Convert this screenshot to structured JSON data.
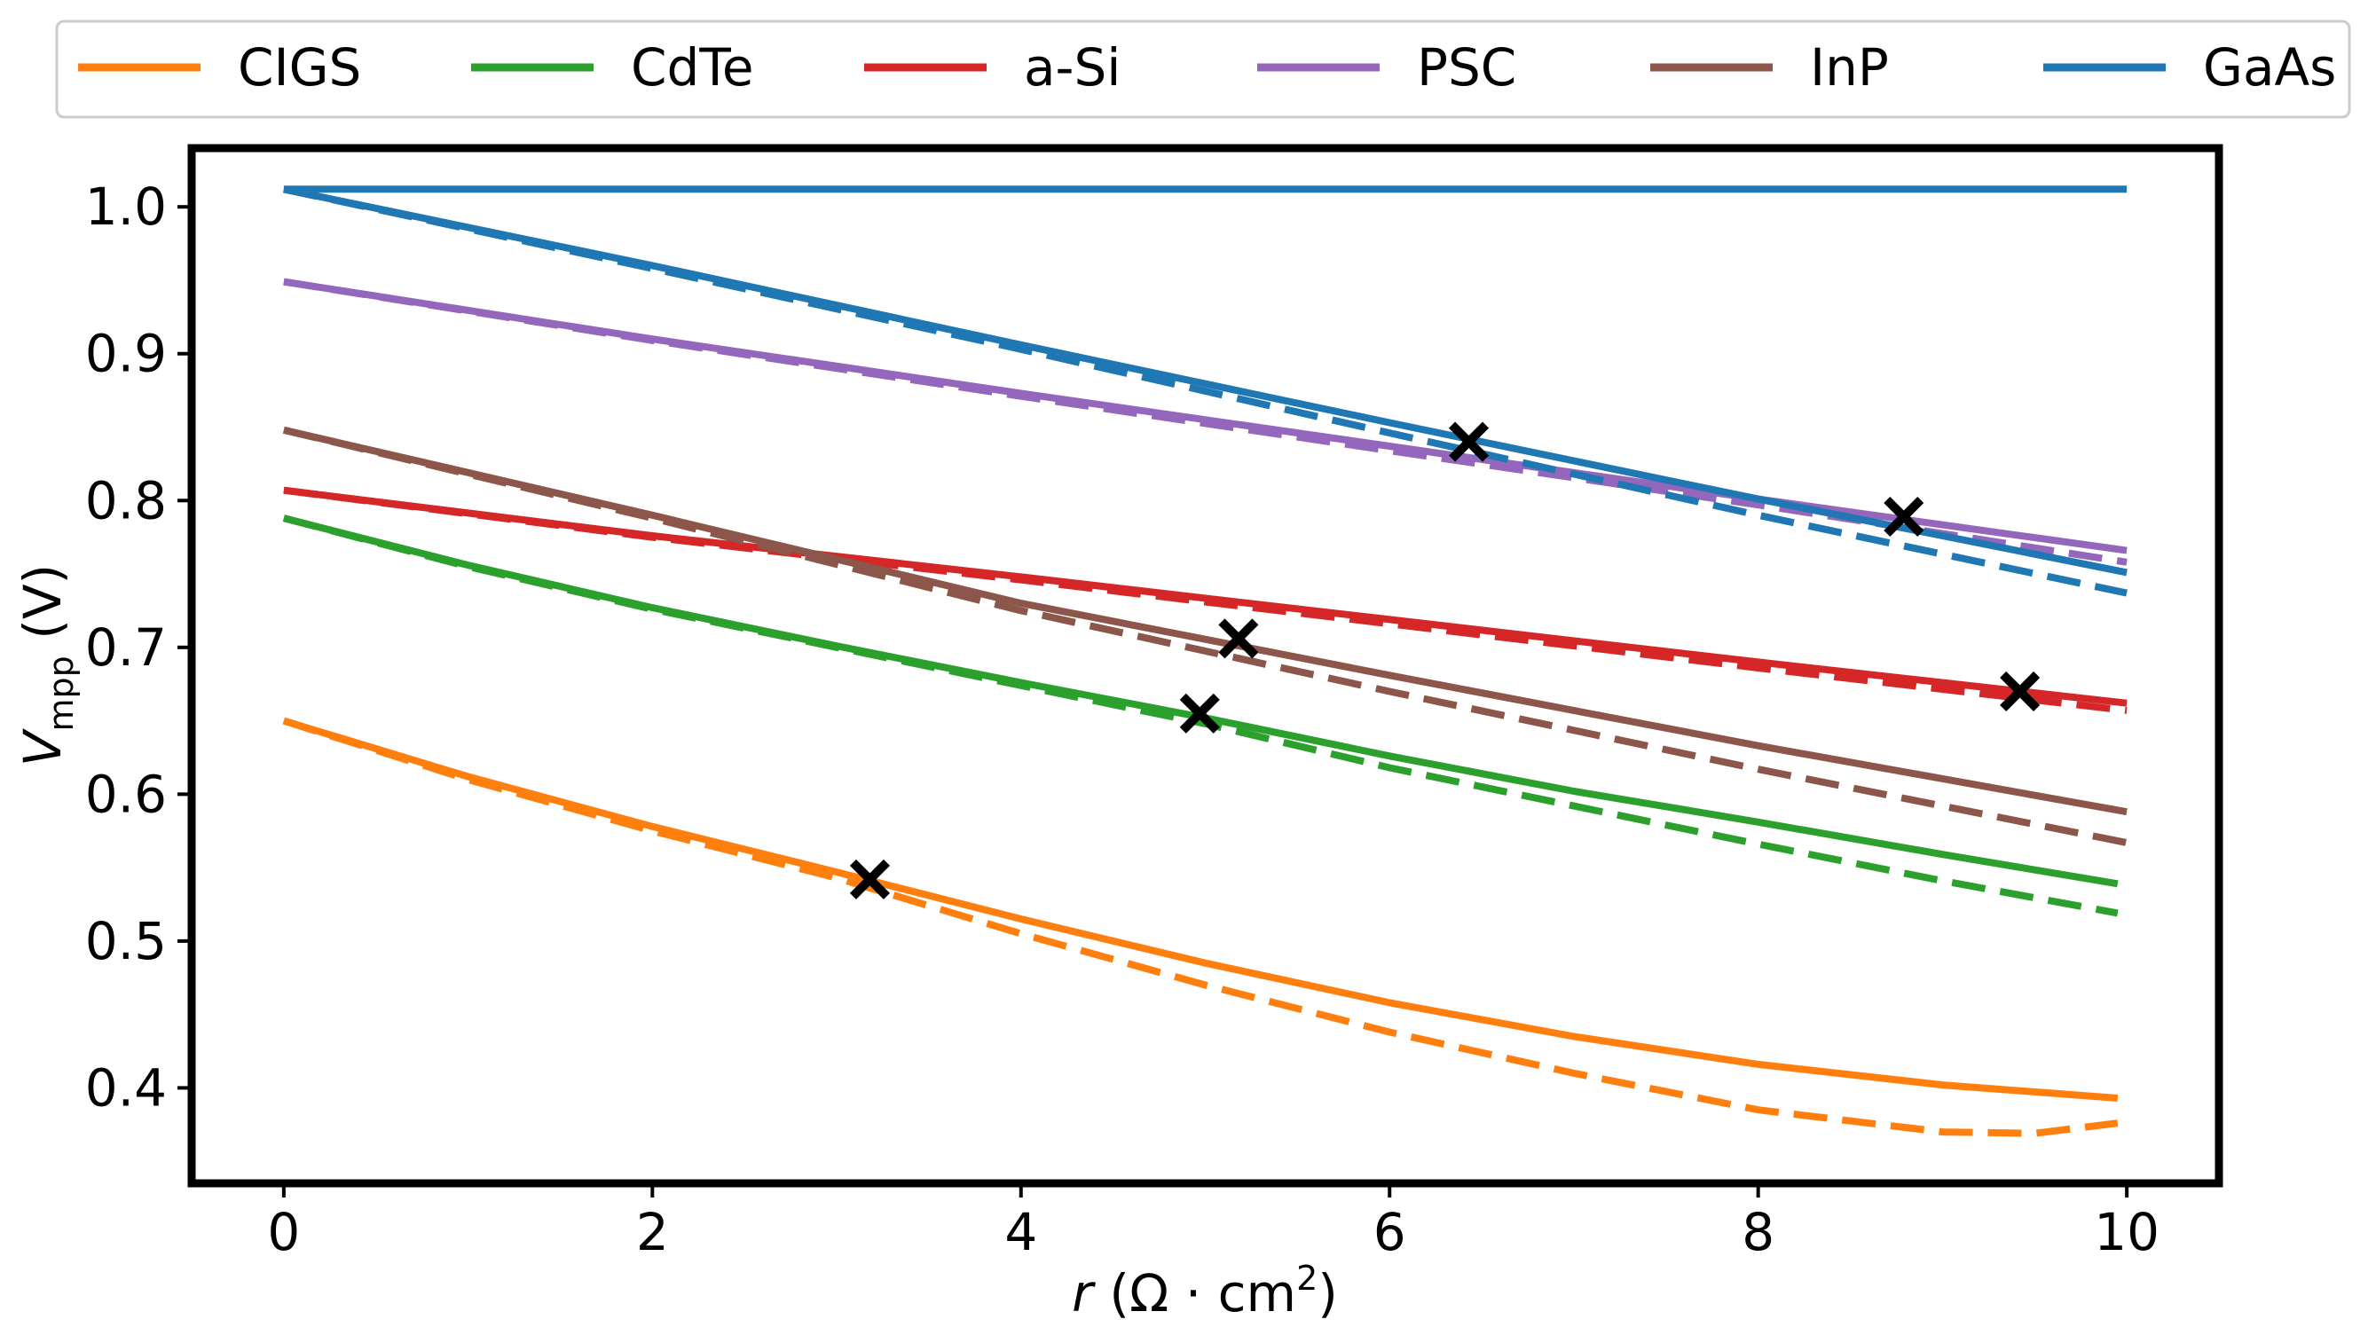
{
  "chart_data": {
    "type": "line",
    "title": "",
    "xlabel": {
      "var": "r",
      "unit_pre": " (Ω · cm",
      "sup": "2",
      "unit_post": ")"
    },
    "ylabel": {
      "var": "V",
      "sub": "mpp",
      "unit": " (V)"
    },
    "xlim": [
      -0.5,
      10.5
    ],
    "ylim": [
      0.335,
      1.04
    ],
    "xticks": [
      0,
      2,
      4,
      6,
      8,
      10
    ],
    "xtick_labels": [
      "0",
      "2",
      "4",
      "6",
      "8",
      "10"
    ],
    "yticks": [
      0.4,
      0.5,
      0.6,
      0.7,
      0.8,
      0.9,
      1.0
    ],
    "ytick_labels": [
      "0.4",
      "0.5",
      "0.6",
      "0.7",
      "0.8",
      "0.9",
      "1.0"
    ],
    "grid": false,
    "legend_position": "top, outside plot",
    "line_styles": {
      "solid": "model",
      "dashed": "model (dashed)"
    },
    "series": [
      {
        "name": "CIGS",
        "color": "#ff7f0e",
        "solid": {
          "x": [
            0,
            1,
            2,
            3,
            4,
            5,
            6,
            7,
            8,
            9,
            9.95
          ],
          "y": [
            0.65,
            0.612,
            0.578,
            0.547,
            0.515,
            0.485,
            0.458,
            0.435,
            0.416,
            0.402,
            0.393
          ]
        },
        "dashed": {
          "x": [
            0,
            1,
            2,
            3,
            4,
            5,
            6,
            7,
            8,
            9,
            9.5,
            9.95
          ],
          "y": [
            0.65,
            0.61,
            0.575,
            0.543,
            0.505,
            0.47,
            0.438,
            0.41,
            0.385,
            0.37,
            0.369,
            0.376
          ]
        }
      },
      {
        "name": "CdTe",
        "color": "#2ca02c",
        "solid": {
          "x": [
            0,
            1,
            2,
            3,
            4,
            5,
            6,
            7,
            8,
            9,
            9.95
          ],
          "y": [
            0.788,
            0.756,
            0.727,
            0.701,
            0.676,
            0.652,
            0.626,
            0.602,
            0.581,
            0.559,
            0.539
          ]
        },
        "dashed": {
          "x": [
            0,
            1,
            2,
            3,
            4,
            5,
            6,
            7,
            8,
            9,
            9.95
          ],
          "y": [
            0.788,
            0.755,
            0.726,
            0.7,
            0.674,
            0.648,
            0.618,
            0.592,
            0.566,
            0.541,
            0.519
          ]
        }
      },
      {
        "name": "a-Si",
        "color": "#d62728",
        "solid": {
          "x": [
            0,
            2,
            4,
            6,
            8,
            10
          ],
          "y": [
            0.807,
            0.776,
            0.748,
            0.719,
            0.69,
            0.662
          ]
        },
        "dashed": {
          "x": [
            0,
            2,
            4,
            6,
            8,
            10
          ],
          "y": [
            0.807,
            0.775,
            0.746,
            0.716,
            0.686,
            0.657
          ]
        }
      },
      {
        "name": "PSC",
        "color": "#9467bd",
        "solid": {
          "x": [
            0,
            2,
            4,
            6,
            8,
            10
          ],
          "y": [
            0.949,
            0.91,
            0.873,
            0.837,
            0.801,
            0.766
          ]
        },
        "dashed": {
          "x": [
            0,
            2,
            4,
            6,
            8,
            10
          ],
          "y": [
            0.949,
            0.909,
            0.871,
            0.834,
            0.797,
            0.758
          ]
        }
      },
      {
        "name": "InP",
        "color": "#8c564b",
        "solid": {
          "x": [
            0,
            2,
            4,
            6,
            8,
            10
          ],
          "y": [
            0.848,
            0.79,
            0.73,
            0.681,
            0.633,
            0.588
          ]
        },
        "dashed": {
          "x": [
            0,
            2,
            4,
            6,
            8,
            10
          ],
          "y": [
            0.848,
            0.788,
            0.725,
            0.67,
            0.617,
            0.567
          ]
        }
      },
      {
        "name": "GaAs",
        "color": "#1f77b4",
        "solid": {
          "x": [
            0,
            2,
            4,
            6,
            8,
            10
          ],
          "y": [
            1.012,
            0.96,
            0.906,
            0.853,
            0.801,
            0.751
          ]
        },
        "dashed": {
          "x": [
            0,
            2,
            4,
            6,
            8,
            10
          ],
          "y": [
            1.012,
            0.958,
            0.903,
            0.846,
            0.79,
            0.737
          ]
        },
        "flat": {
          "x": [
            0,
            10
          ],
          "y": [
            1.012,
            1.012
          ]
        }
      }
    ],
    "markers": [
      {
        "series": "CIGS",
        "x": 3.18,
        "y": 0.542
      },
      {
        "series": "CdTe",
        "x": 4.97,
        "y": 0.655
      },
      {
        "series": "InP",
        "x": 5.18,
        "y": 0.706
      },
      {
        "series": "GaAs",
        "x": 6.43,
        "y": 0.84
      },
      {
        "series": "PSC",
        "x": 8.79,
        "y": 0.789
      },
      {
        "series": "a-Si",
        "x": 9.42,
        "y": 0.67
      }
    ]
  }
}
